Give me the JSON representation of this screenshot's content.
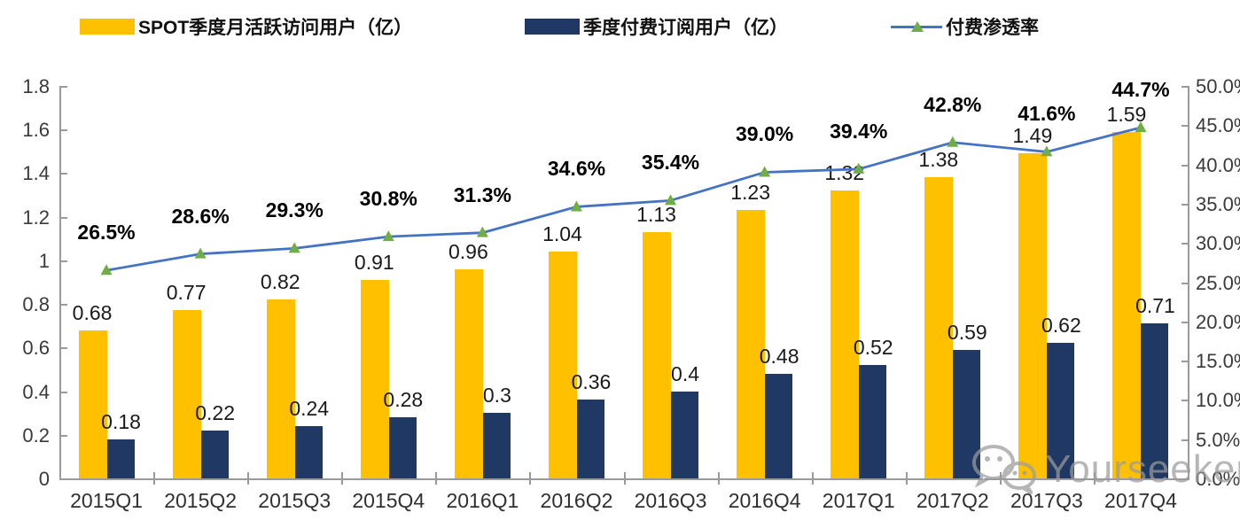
{
  "legend": {
    "items": [
      {
        "label": "SPOT季度月活跃访问用户（亿）",
        "swatch": "bar",
        "color": "#FFC000"
      },
      {
        "label": "季度付费订阅用户（亿）",
        "swatch": "bar",
        "color": "#1F3864"
      },
      {
        "label": "付费渗透率",
        "swatch": "line-triangle-marker",
        "color": "#4472C4",
        "marker_color": "#70AD47"
      }
    ]
  },
  "chart_data": {
    "type": "bar+line-combo",
    "title": "",
    "categories": [
      "2015Q1",
      "2015Q2",
      "2015Q3",
      "2015Q4",
      "2016Q1",
      "2016Q2",
      "2016Q3",
      "2016Q4",
      "2017Q1",
      "2017Q2",
      "2017Q3",
      "2017Q4"
    ],
    "series": [
      {
        "name": "SPOT季度月活跃访问用户（亿）",
        "type": "bar",
        "axis": "left",
        "color": "#FFC000",
        "values": [
          0.68,
          0.77,
          0.82,
          0.91,
          0.96,
          1.04,
          1.13,
          1.23,
          1.32,
          1.38,
          1.49,
          1.59
        ],
        "labels": [
          "0.68",
          "0.77",
          "0.82",
          "0.91",
          "0.96",
          "1.04",
          "1.13",
          "1.23",
          "1.32",
          "1.38",
          "1.49",
          "1.59"
        ]
      },
      {
        "name": "季度付费订阅用户（亿）",
        "type": "bar",
        "axis": "left",
        "color": "#1F3864",
        "values": [
          0.18,
          0.22,
          0.24,
          0.28,
          0.3,
          0.36,
          0.4,
          0.48,
          0.52,
          0.59,
          0.62,
          0.71
        ],
        "labels": [
          "0.18",
          "0.22",
          "0.24",
          "0.28",
          "0.3",
          "0.36",
          "0.4",
          "0.48",
          "0.52",
          "0.59",
          "0.62",
          "0.71"
        ]
      },
      {
        "name": "付费渗透率",
        "type": "line",
        "axis": "right",
        "color": "#4472C4",
        "marker": "triangle",
        "marker_color": "#70AD47",
        "values": [
          26.5,
          28.6,
          29.3,
          30.8,
          31.3,
          34.6,
          35.4,
          39.0,
          39.4,
          42.8,
          41.6,
          44.7
        ],
        "labels": [
          "26.5%",
          "28.6%",
          "29.3%",
          "30.8%",
          "31.3%",
          "34.6%",
          "35.4%",
          "39.0%",
          "39.4%",
          "42.8%",
          "41.6%",
          "44.7%"
        ]
      }
    ],
    "left_axis": {
      "min": 0,
      "max": 1.8,
      "step": 0.2,
      "tick_labels": [
        "0",
        "0.2",
        "0.4",
        "0.6",
        "0.8",
        "1",
        "1.2",
        "1.4",
        "1.6",
        "1.8"
      ]
    },
    "right_axis": {
      "min": 0,
      "max": 50,
      "step": 5,
      "tick_labels": [
        "0.0%",
        "5.0%",
        "10.0%",
        "15.0%",
        "20.0%",
        "25.0%",
        "30.0%",
        "35.0%",
        "40.0%",
        "45.0%",
        "50.0%"
      ]
    },
    "grid": false,
    "legend_position": "top"
  },
  "watermark": {
    "icon": "wechat-icon",
    "text": "Yourseeker"
  }
}
